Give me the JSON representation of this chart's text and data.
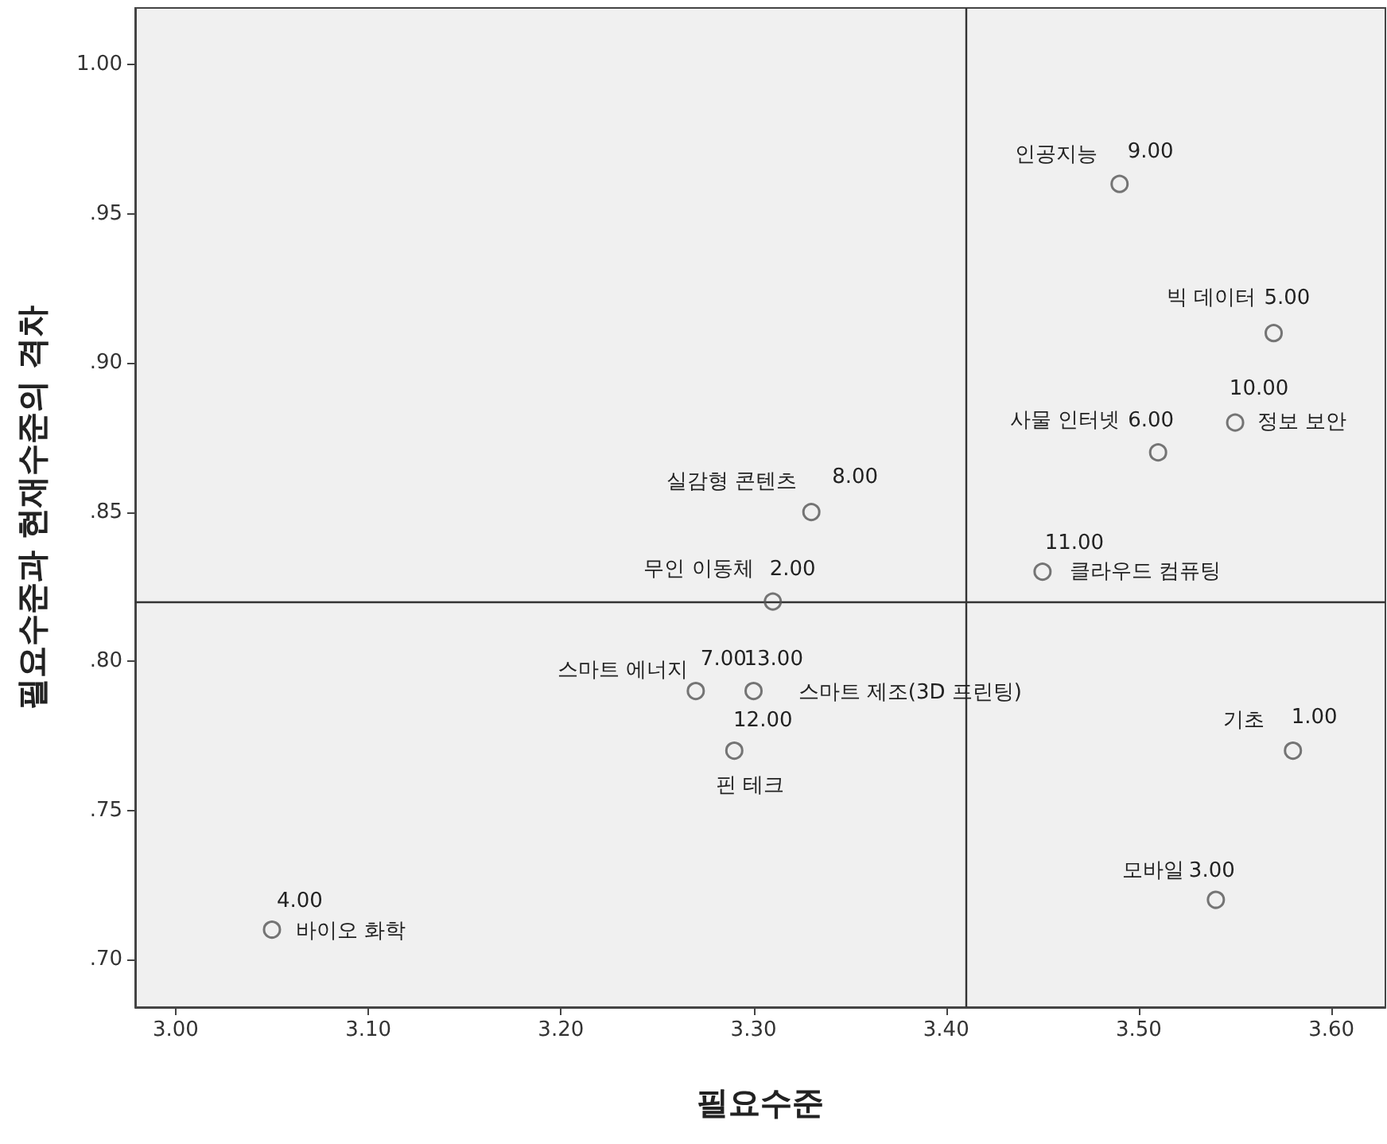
{
  "chart_data": {
    "type": "scatter",
    "xlabel": "필요수준",
    "ylabel": "필요수준과 현재수준의 격차",
    "x": [
      3.49,
      3.57,
      3.55,
      3.51,
      3.33,
      3.45,
      3.31,
      3.27,
      3.3,
      3.29,
      3.58,
      3.54,
      3.05
    ],
    "series": [
      {
        "color": "#555555",
        "values": [
          0.96,
          0.91,
          0.88,
          0.87,
          0.85,
          0.83,
          0.82,
          0.79,
          0.79,
          0.77,
          0.77,
          0.72,
          0.71
        ]
      }
    ],
    "marker": "circle",
    "grid": false,
    "xlim": [
      2.979,
      3.628
    ],
    "ylim": [
      0.684,
      1.019
    ],
    "xticks": [
      {
        "value": 3.0,
        "label": "3.00"
      },
      {
        "value": 3.1,
        "label": "3.10"
      },
      {
        "value": 3.2,
        "label": "3.20"
      },
      {
        "value": 3.3,
        "label": "3.30"
      },
      {
        "value": 3.4,
        "label": "3.40"
      },
      {
        "value": 3.5,
        "label": "3.50"
      },
      {
        "value": 3.6,
        "label": "3.60"
      }
    ],
    "yticks": [
      {
        "value": 0.7,
        "label": ".70"
      },
      {
        "value": 0.75,
        "label": ".75"
      },
      {
        "value": 0.8,
        "label": ".80"
      },
      {
        "value": 0.85,
        "label": ".85"
      },
      {
        "value": 0.9,
        "label": ".90"
      },
      {
        "value": 0.95,
        "label": ".95"
      },
      {
        "value": 1.0,
        "label": "1.00"
      }
    ],
    "ref_lines": [
      {
        "axis": "x",
        "value": 3.41,
        "label": null
      },
      {
        "axis": "y",
        "value": 0.82,
        "label": null
      }
    ],
    "annotations": [
      {
        "text": "인공지능",
        "x": 3.49,
        "y": 0.96
      },
      {
        "text": "9.00",
        "x": 3.49,
        "y": 0.96
      },
      {
        "text": "빅 데이터",
        "x": 3.57,
        "y": 0.91
      },
      {
        "text": "5.00",
        "x": 3.57,
        "y": 0.91
      },
      {
        "text": "정보 보안",
        "x": 3.55,
        "y": 0.88
      },
      {
        "text": "10.00",
        "x": 3.55,
        "y": 0.88
      },
      {
        "text": "사물 인터넷",
        "x": 3.51,
        "y": 0.87
      },
      {
        "text": "6.00",
        "x": 3.51,
        "y": 0.87
      },
      {
        "text": "실감형 콘텐츠",
        "x": 3.33,
        "y": 0.85
      },
      {
        "text": "8.00",
        "x": 3.33,
        "y": 0.85
      },
      {
        "text": "클라우드 컴퓨팅",
        "x": 3.45,
        "y": 0.83
      },
      {
        "text": "11.00",
        "x": 3.45,
        "y": 0.83
      },
      {
        "text": "무인 이동체",
        "x": 3.31,
        "y": 0.82
      },
      {
        "text": "2.00",
        "x": 3.31,
        "y": 0.82
      },
      {
        "text": "스마트 에너지",
        "x": 3.27,
        "y": 0.79
      },
      {
        "text": "7.00",
        "x": 3.27,
        "y": 0.79
      },
      {
        "text": "스마트 제조(3D 프린팅)",
        "x": 3.3,
        "y": 0.79
      },
      {
        "text": "13.00",
        "x": 3.3,
        "y": 0.79
      },
      {
        "text": "핀 테크",
        "x": 3.29,
        "y": 0.77
      },
      {
        "text": "12.00",
        "x": 3.29,
        "y": 0.77
      },
      {
        "text": "기초",
        "x": 3.58,
        "y": 0.77
      },
      {
        "text": "1.00",
        "x": 3.58,
        "y": 0.77
      },
      {
        "text": "모바일",
        "x": 3.54,
        "y": 0.72
      },
      {
        "text": "3.00",
        "x": 3.54,
        "y": 0.72
      },
      {
        "text": "바이오 화학",
        "x": 3.05,
        "y": 0.71
      },
      {
        "text": "4.00",
        "x": 3.05,
        "y": 0.71
      }
    ]
  }
}
